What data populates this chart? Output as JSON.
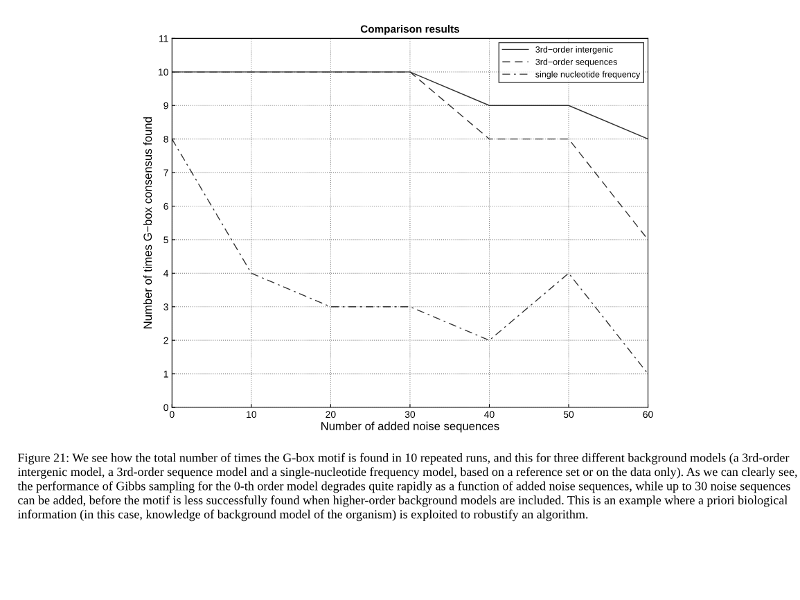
{
  "chart_data": {
    "type": "line",
    "title": "Comparison results",
    "xlabel": "Number of added noise sequences",
    "ylabel": "Number of times G−box consensus found",
    "x": [
      0,
      10,
      20,
      30,
      40,
      50,
      60
    ],
    "series": [
      {
        "name": "3rd−order intergenic",
        "color": "#333333",
        "line_style": "solid",
        "values": [
          10,
          10,
          10,
          10,
          9,
          9,
          8
        ]
      },
      {
        "name": "3rd−order sequences",
        "color": "#333333",
        "line_style": "dashed",
        "values": [
          10,
          10,
          10,
          10,
          8,
          8,
          5
        ]
      },
      {
        "name": "single nucleotide frequency",
        "color": "#333333",
        "line_style": "dashdot",
        "values": [
          8,
          4,
          3,
          3,
          2,
          4,
          1
        ]
      }
    ],
    "xlim": [
      0,
      60
    ],
    "xticks": [
      0,
      10,
      20,
      30,
      40,
      50,
      60
    ],
    "ylim": [
      0,
      11
    ],
    "yticks": [
      0,
      1,
      2,
      3,
      4,
      5,
      6,
      7,
      8,
      9,
      10,
      11
    ],
    "grid": true,
    "legend": "top right",
    "marker": "none",
    "annotations": [
      "Figure 21: We see how the total number of times the G-box motif is found in 10 repeated runs, and this for three different background models (a 3rd-order intergenic model, a 3rd-order sequence model and a single-nucleotide frequency model, based on a reference set or on the data only). As we can clearly see, the performance of Gibbs sampling for the 0-th order model degrades quite rapidly as a function of added noise sequences, while up to 30 noise sequences can be added, before the motif is less successfully found when higher-order background models are included. This is an example where a priori biological information (in this case, knowledge of background model of the organism) is exploited to robustify an algorithm."
    ]
  }
}
